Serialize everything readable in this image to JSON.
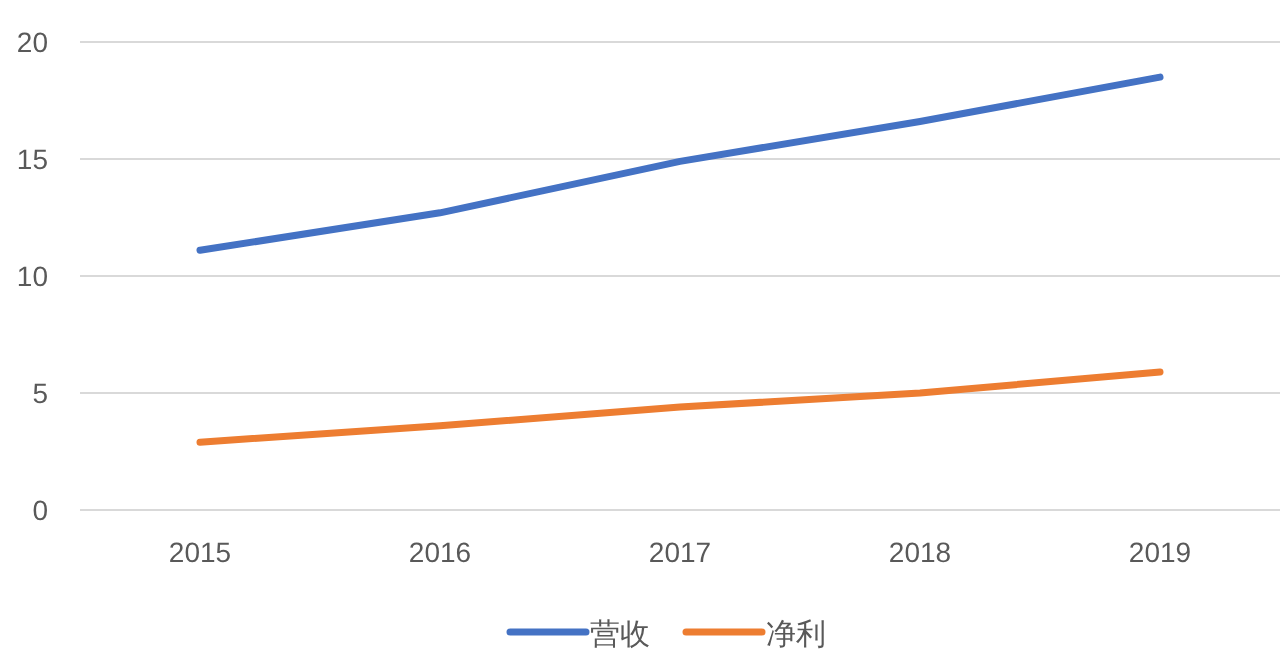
{
  "chart_data": {
    "type": "line",
    "categories": [
      "2015",
      "2016",
      "2017",
      "2018",
      "2019"
    ],
    "series": [
      {
        "name": "营收",
        "color": "#4472c4",
        "values": [
          11.1,
          12.7,
          14.9,
          16.6,
          18.5
        ]
      },
      {
        "name": "净利",
        "color": "#ed7d31",
        "values": [
          2.9,
          3.6,
          4.4,
          5.0,
          5.9
        ]
      }
    ],
    "ylim": [
      0,
      20
    ],
    "yticks": [
      0,
      5,
      10,
      15,
      20
    ],
    "grid": "y",
    "legend": "bottom",
    "marker": "none",
    "line_style": "solid"
  }
}
